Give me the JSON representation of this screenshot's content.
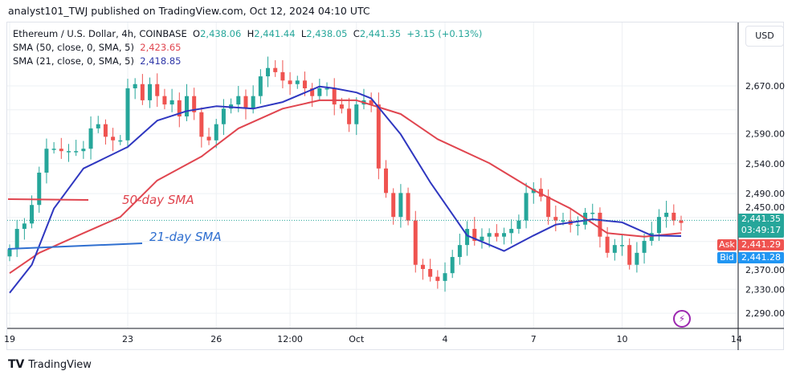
{
  "published": "analyst101_TWJ published on TradingView.com, Oct 12, 2024 04:10 UTC",
  "legend": {
    "symbol": "Ethereum / U.S. Dollar, 4h, COINBASE",
    "o_label": "O",
    "o": "2,438.06",
    "h_label": "H",
    "h": "2,441.44",
    "l_label": "L",
    "l": "2,438.05",
    "c_label": "C",
    "c": "2,441.35",
    "change": "+3.15 (+0.13%)",
    "sma50_label": "SMA (50, close, 0, SMA, 5)",
    "sma50_value": "2,423.65",
    "sma21_label": "SMA (21, close, 0, SMA, 5)",
    "sma21_value": "2,418.85"
  },
  "currency": "USD",
  "price_tags": {
    "last": "2,441.35",
    "countdown": "03:49:17",
    "ask_label": "Ask",
    "ask": "2,441.29",
    "bid_label": "Bid",
    "bid": "2,441.28"
  },
  "annotations": {
    "sma50": "50-day SMA",
    "sma21": "21-day SMA"
  },
  "brand": "TradingView",
  "colors": {
    "up": "#26a69a",
    "down": "#ef5350",
    "sma50": "#e0454f",
    "sma21": "#2f37c0",
    "ask": "#ef5350",
    "bid": "#2196f3",
    "annotation_line50": "#e0454f",
    "annotation_line21": "#2f6fd0"
  },
  "chart_data": {
    "type": "candlestick",
    "price_ticks": [
      2670,
      2590,
      2540,
      2490,
      2450,
      2370,
      2330,
      2290
    ],
    "price_tick_labels": [
      "2,670.00",
      "2,590.00",
      "2,540.00",
      "2,490.00",
      "2,450.00",
      "2,370.00",
      "2,330.00",
      "2,290.00"
    ],
    "time_labels": [
      "19",
      "23",
      "26",
      "12:00",
      "Oct",
      "4",
      "7",
      "10",
      "14"
    ],
    "time_label_index": [
      0,
      16,
      28,
      38,
      47,
      59,
      71,
      83,
      98.5
    ],
    "ylim": [
      2270,
      2730
    ],
    "closes": [
      2397,
      2431,
      2440,
      2471,
      2525,
      2565,
      2565,
      2561,
      2561,
      2561,
      2565,
      2599,
      2606,
      2585,
      2579,
      2579,
      2666,
      2673,
      2646,
      2673,
      2653,
      2639,
      2646,
      2619,
      2653,
      2626,
      2585,
      2579,
      2606,
      2632,
      2639,
      2653,
      2632,
      2653,
      2686,
      2700,
      2693,
      2679,
      2673,
      2679,
      2666,
      2653,
      2666,
      2666,
      2639,
      2632,
      2606,
      2639,
      2646,
      2639,
      2532,
      2491,
      2451,
      2491,
      2445,
      2371,
      2364,
      2351,
      2344,
      2357,
      2384,
      2404,
      2431,
      2411,
      2418,
      2424,
      2418,
      2424,
      2431,
      2445,
      2491,
      2498,
      2485,
      2451,
      2445,
      2445,
      2438,
      2438,
      2458,
      2458,
      2418,
      2391,
      2404,
      2404,
      2371,
      2391,
      2411,
      2424,
      2451,
      2458,
      2445,
      2441
    ],
    "sma21": {
      "index": [
        0,
        3,
        6,
        10,
        16,
        20,
        24,
        28,
        33,
        37,
        42,
        44,
        47,
        49,
        53,
        57,
        62,
        67,
        71,
        74,
        79,
        83,
        87,
        91
      ],
      "values": [
        2324,
        2371,
        2465,
        2532,
        2568,
        2612,
        2628,
        2636,
        2632,
        2643,
        2669,
        2666,
        2659,
        2649,
        2589,
        2509,
        2420,
        2394,
        2420,
        2438,
        2447,
        2442,
        2420,
        2419
      ]
    },
    "sma50": {
      "index": [
        0,
        4,
        10,
        15,
        20,
        26,
        31,
        37,
        42,
        47,
        53,
        58,
        65,
        71,
        76,
        81,
        86,
        91
      ],
      "values": [
        2357,
        2391,
        2424,
        2451,
        2512,
        2552,
        2599,
        2632,
        2646,
        2646,
        2623,
        2581,
        2541,
        2496,
        2465,
        2424,
        2418,
        2424
      ]
    },
    "last_price": 2441.35
  }
}
